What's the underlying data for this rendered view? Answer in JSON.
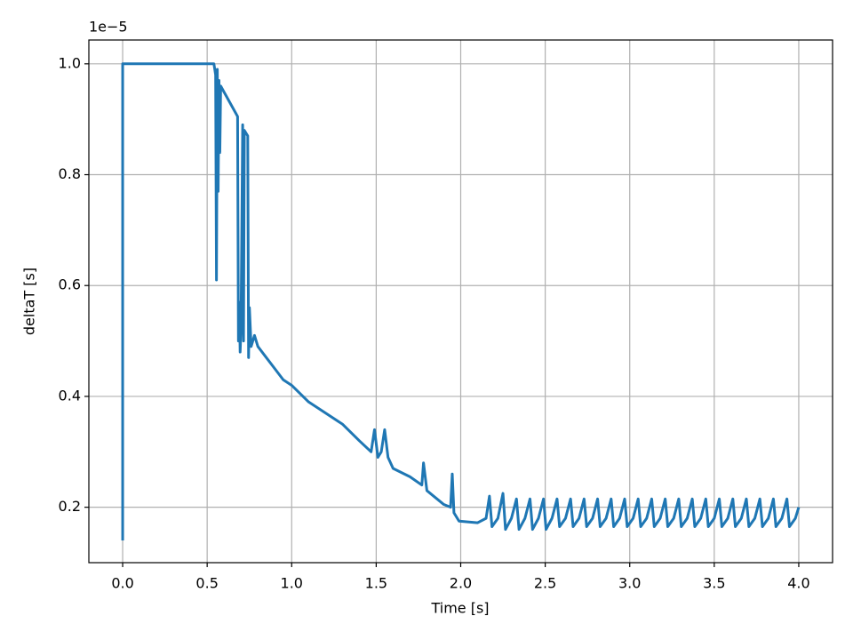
{
  "chart_data": {
    "type": "line",
    "xlabel": "Time [s]",
    "ylabel": "deltaT [s]",
    "y_offset_label": "1e−5",
    "color": "#1f77b4",
    "grid": true,
    "xlim": [
      -0.2,
      4.2
    ],
    "ylim": [
      0.1,
      1.043
    ],
    "xticks": [
      {
        "value": 0,
        "label": "0.0"
      },
      0.5,
      {
        "value": 1,
        "label": "1.0"
      },
      1.5,
      {
        "value": 2,
        "label": "2.0"
      },
      2.5,
      {
        "value": 3,
        "label": "3.0"
      },
      3.5,
      {
        "value": 4,
        "label": "4.0"
      }
    ],
    "yticks": [
      0.2,
      0.4,
      0.6,
      0.8,
      {
        "value": 1,
        "label": "1.0"
      }
    ],
    "x": [
      0,
      0,
      0.54,
      0.55,
      0.555,
      0.56,
      0.565,
      0.57,
      0.575,
      0.58,
      0.68,
      0.685,
      0.69,
      0.695,
      0.7,
      0.71,
      0.715,
      0.72,
      0.74,
      0.745,
      0.75,
      0.76,
      0.78,
      0.8,
      0.85,
      0.9,
      0.95,
      1.0,
      1.1,
      1.2,
      1.3,
      1.4,
      1.47,
      1.49,
      1.51,
      1.53,
      1.55,
      1.57,
      1.6,
      1.7,
      1.77,
      1.78,
      1.8,
      1.9,
      1.94,
      1.95,
      1.96,
      1.99,
      2.1,
      2.15,
      2.17,
      2.185,
      2.22,
      2.25,
      2.265,
      2.3,
      2.33,
      2.345,
      2.38,
      2.41,
      2.425,
      2.46,
      2.49,
      2.505,
      2.54,
      2.57,
      2.585,
      2.62,
      2.65,
      2.665,
      2.7,
      2.73,
      2.745,
      2.78,
      2.81,
      2.825,
      2.86,
      2.89,
      2.905,
      2.94,
      2.97,
      2.985,
      3.02,
      3.05,
      3.065,
      3.1,
      3.13,
      3.145,
      3.18,
      3.21,
      3.225,
      3.26,
      3.29,
      3.305,
      3.34,
      3.37,
      3.385,
      3.42,
      3.45,
      3.465,
      3.5,
      3.53,
      3.545,
      3.58,
      3.61,
      3.625,
      3.66,
      3.69,
      3.705,
      3.74,
      3.77,
      3.785,
      3.82,
      3.85,
      3.865,
      3.9,
      3.93,
      3.945,
      3.98,
      4.0
    ],
    "values": [
      0.14,
      1.0,
      1.0,
      0.98,
      0.61,
      0.99,
      0.77,
      0.97,
      0.84,
      0.96,
      0.905,
      0.5,
      0.57,
      0.48,
      0.52,
      0.89,
      0.5,
      0.88,
      0.87,
      0.47,
      0.56,
      0.49,
      0.51,
      0.49,
      0.47,
      0.45,
      0.43,
      0.42,
      0.39,
      0.37,
      0.35,
      0.32,
      0.3,
      0.34,
      0.29,
      0.3,
      0.34,
      0.29,
      0.27,
      0.255,
      0.24,
      0.28,
      0.23,
      0.205,
      0.2,
      0.26,
      0.19,
      0.175,
      0.172,
      0.18,
      0.22,
      0.165,
      0.18,
      0.225,
      0.16,
      0.18,
      0.215,
      0.16,
      0.18,
      0.215,
      0.16,
      0.18,
      0.215,
      0.16,
      0.18,
      0.215,
      0.165,
      0.18,
      0.215,
      0.165,
      0.18,
      0.215,
      0.165,
      0.18,
      0.215,
      0.165,
      0.18,
      0.215,
      0.165,
      0.18,
      0.215,
      0.165,
      0.18,
      0.215,
      0.165,
      0.18,
      0.215,
      0.165,
      0.18,
      0.215,
      0.165,
      0.18,
      0.215,
      0.165,
      0.18,
      0.215,
      0.165,
      0.18,
      0.215,
      0.165,
      0.18,
      0.215,
      0.165,
      0.18,
      0.215,
      0.165,
      0.18,
      0.215,
      0.165,
      0.18,
      0.215,
      0.165,
      0.18,
      0.215,
      0.165,
      0.18,
      0.215,
      0.165,
      0.18,
      0.2
    ]
  }
}
